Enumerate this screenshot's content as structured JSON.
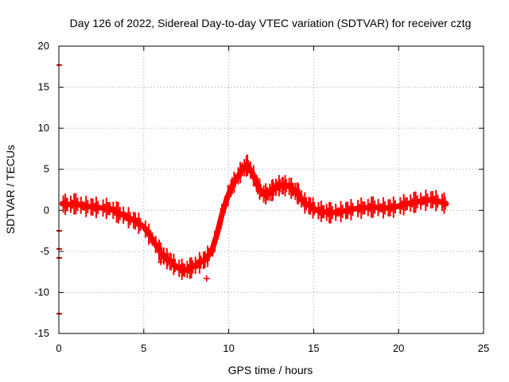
{
  "chart_data": {
    "type": "scatter",
    "title": "Day 126 of 2022, Sidereal Day-to-day VTEC variation (SDTVAR) for receiver cztg",
    "xlabel": "GPS time / hours",
    "ylabel": "SDTVAR / TECUs",
    "xlim": [
      0,
      25
    ],
    "ylim": [
      -15,
      20
    ],
    "xticks": [
      "0",
      "5",
      "10",
      "15",
      "20",
      "25"
    ],
    "yticks": [
      "-15",
      "-10",
      "-5",
      "0",
      "5",
      "10",
      "15",
      "20"
    ],
    "grid": true,
    "series": [
      {
        "name": "SDTVAR",
        "color": "#ff0000",
        "x": [
          0.2,
          0.5,
          1.0,
          1.5,
          2.0,
          2.5,
          3.0,
          3.5,
          4.0,
          4.5,
          5.0,
          5.5,
          6.0,
          6.3,
          6.6,
          7.0,
          7.4,
          7.8,
          8.2,
          8.6,
          9.0,
          9.3,
          9.6,
          9.9,
          10.2,
          10.5,
          10.8,
          11.1,
          11.4,
          11.7,
          12.0,
          12.3,
          12.6,
          12.9,
          13.2,
          13.5,
          13.8,
          14.1,
          14.4,
          14.8,
          15.2,
          15.6,
          16.0,
          16.5,
          17.0,
          17.5,
          18.0,
          18.5,
          19.0,
          19.5,
          20.0,
          20.5,
          21.0,
          21.5,
          22.0,
          22.5,
          22.8
        ],
        "y": [
          0.8,
          0.7,
          0.8,
          0.5,
          0.4,
          0.3,
          0.2,
          -0.3,
          -0.8,
          -1.3,
          -2.0,
          -3.5,
          -5.2,
          -5.8,
          -6.3,
          -7.0,
          -7.3,
          -7.0,
          -6.5,
          -6.0,
          -5.0,
          -3.0,
          -0.5,
          1.5,
          3.0,
          4.0,
          5.0,
          5.5,
          4.5,
          3.0,
          2.0,
          2.0,
          2.5,
          3.0,
          3.0,
          3.0,
          2.5,
          2.0,
          1.0,
          0.5,
          0.0,
          -0.2,
          -0.3,
          -0.2,
          0.0,
          0.2,
          0.3,
          0.4,
          0.3,
          0.3,
          0.5,
          0.8,
          1.0,
          1.2,
          1.3,
          1.0,
          0.8
        ]
      }
    ],
    "edge_marks": {
      "x": 0,
      "y": [
        17.7,
        -2.5,
        -4.7,
        -5.8,
        -12.6
      ]
    },
    "outliers": [
      {
        "x": 8.7,
        "y": -8.3
      },
      {
        "x": 6.0,
        "y": -6.3
      }
    ]
  }
}
